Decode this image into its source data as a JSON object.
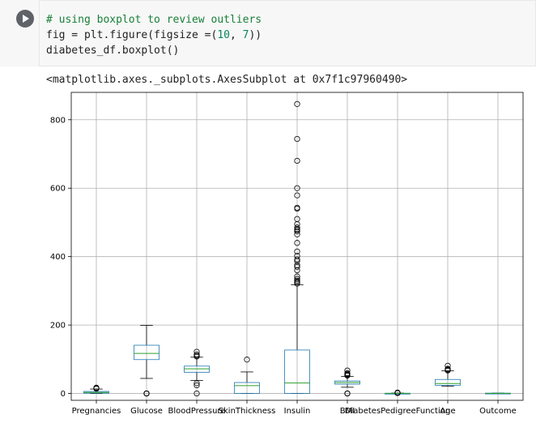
{
  "cell": {
    "run_button_label": "Run cell",
    "code_lines": [
      {
        "parts": [
          {
            "cls": "c-comment",
            "text": "# using boxplot to review outliers"
          }
        ]
      },
      {
        "parts": [
          {
            "cls": "",
            "text": "fig = plt.figure(figsize =("
          },
          {
            "cls": "c-num",
            "text": "10"
          },
          {
            "cls": "",
            "text": ", "
          },
          {
            "cls": "c-num",
            "text": "7"
          },
          {
            "cls": "",
            "text": "))"
          }
        ]
      },
      {
        "parts": [
          {
            "cls": "",
            "text": "diabetes_df.boxplot()"
          }
        ]
      }
    ]
  },
  "output": {
    "repr": "<matplotlib.axes._subplots.AxesSubplot at 0x7f1c97960490>"
  },
  "colors": {
    "box": "#1f77b4",
    "median": "#2ca02c",
    "whisker": "#000000",
    "grid": "#b0b0b0"
  },
  "chart_data": {
    "type": "boxplot",
    "title": "",
    "xlabel": "",
    "ylabel": "",
    "ylim": [
      -20,
      880
    ],
    "yticks": [
      0,
      200,
      400,
      600,
      800
    ],
    "grid": true,
    "legend": "none",
    "categories": [
      "Pregnancies",
      "Glucose",
      "BloodPressure",
      "SkinThickness",
      "Insulin",
      "BMI",
      "DiabetesPedigreeFunction",
      "Age",
      "Outcome"
    ],
    "boxes": [
      {
        "name": "Pregnancies",
        "whislo": 0,
        "q1": 1,
        "med": 3,
        "q3": 6,
        "whishi": 13,
        "fliers": [
          14,
          15,
          17
        ]
      },
      {
        "name": "Glucose",
        "whislo": 44,
        "q1": 99,
        "med": 117,
        "q3": 141,
        "whishi": 199,
        "fliers": [
          0,
          0,
          0,
          0,
          0
        ]
      },
      {
        "name": "BloodPressure",
        "whislo": 38,
        "q1": 62,
        "med": 72,
        "q3": 80,
        "whishi": 106,
        "fliers": [
          0,
          24,
          30,
          108,
          110,
          114,
          122
        ]
      },
      {
        "name": "SkinThickness",
        "whislo": 0,
        "q1": 0,
        "med": 23,
        "q3": 32,
        "whishi": 63,
        "fliers": [
          99
        ]
      },
      {
        "name": "Insulin",
        "whislo": 0,
        "q1": 0,
        "med": 30.5,
        "q3": 127,
        "whishi": 318,
        "fliers": [
          321,
          325,
          326,
          330,
          335,
          342,
          360,
          370,
          375,
          387,
          392,
          402,
          415,
          440,
          465,
          474,
          478,
          480,
          485,
          495,
          510,
          540,
          543,
          579,
          600,
          680,
          744,
          846
        ]
      },
      {
        "name": "BMI",
        "whislo": 18.2,
        "q1": 27.3,
        "med": 32,
        "q3": 36.6,
        "whishi": 50,
        "fliers": [
          0,
          0,
          0,
          52.3,
          53.2,
          55,
          57.3,
          59.4,
          67.1
        ]
      },
      {
        "name": "DiabetesPedigreeFunction",
        "whislo": 0.08,
        "q1": 0.24,
        "med": 0.37,
        "q3": 0.63,
        "whishi": 1.19,
        "fliers": [
          1.25,
          1.5,
          1.7,
          1.9,
          2.2,
          2.42
        ]
      },
      {
        "name": "Age",
        "whislo": 21,
        "q1": 24,
        "med": 29,
        "q3": 41,
        "whishi": 66,
        "fliers": [
          67,
          69,
          70,
          72,
          81
        ]
      },
      {
        "name": "Outcome",
        "whislo": 0,
        "q1": 0,
        "med": 0,
        "q3": 1,
        "whishi": 1,
        "fliers": []
      }
    ]
  }
}
